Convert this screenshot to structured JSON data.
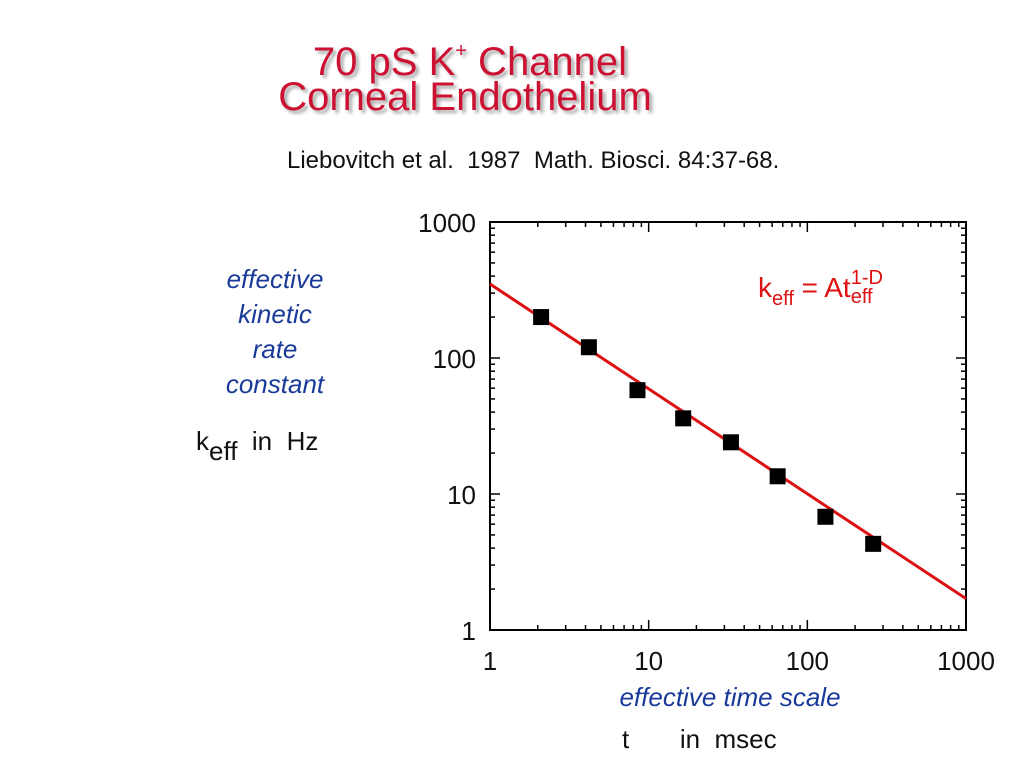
{
  "header": {
    "title_line1_main": "70 pS K",
    "title_line1_sup": "+",
    "title_line1_end": " Channel",
    "title_line2": "Corneal Endothelium",
    "citation": "Liebovitch et al.  1987  Math. Biosci. 84:37-68."
  },
  "ylabel": {
    "line1": "effective",
    "line2": "kinetic",
    "line3": "rate",
    "line4": "constant",
    "unit_k": "k",
    "unit_sub": "eff",
    "unit_text": "  in  Hz"
  },
  "xlabel": {
    "title": "effective time scale",
    "unit_t": "t",
    "unit_text": "in  msec"
  },
  "formula": {
    "k": "k",
    "k_sub": "eff",
    "eq": " = At",
    "t_sup": "1-D",
    "t_sub": "eff"
  },
  "colors": {
    "title": "#cc1133",
    "label_blue": "#1a3a9a",
    "fit_line": "#dd1111",
    "points": "#000000"
  },
  "chart_data": {
    "type": "scatter",
    "xscale": "log",
    "yscale": "log",
    "xlim": [
      1,
      1000
    ],
    "ylim": [
      1,
      1000
    ],
    "x_ticks": [
      "1",
      "10",
      "100",
      "1000"
    ],
    "y_ticks": [
      "1",
      "10",
      "100",
      "1000"
    ],
    "series": [
      {
        "x": [
          2.1,
          4.2,
          8.5,
          16.5,
          33,
          65,
          130,
          260
        ],
        "y": [
          200,
          120,
          58,
          36,
          24,
          13.5,
          6.8,
          4.3
        ]
      }
    ],
    "fit_line": {
      "x": [
        1,
        1000
      ],
      "y": [
        350,
        1.7
      ]
    },
    "annotation": "k_eff = A t_eff^(1-D)"
  }
}
